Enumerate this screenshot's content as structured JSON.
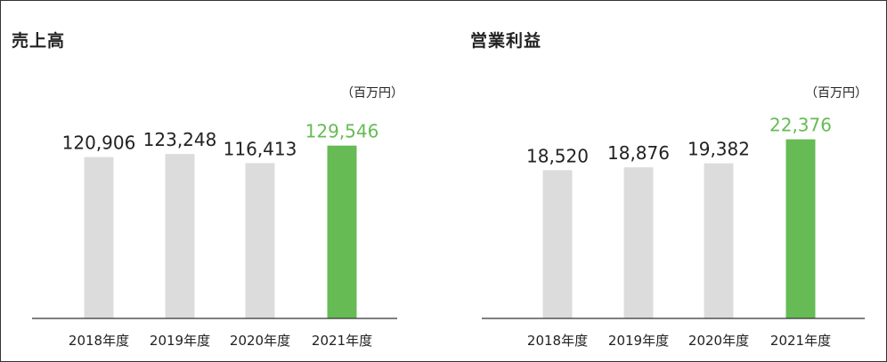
{
  "colors": {
    "bar_default": "#dcdcdc",
    "bar_highlight": "#66bb55",
    "label_default": "#222222",
    "label_highlight": "#66bb55",
    "axis": "#333333"
  },
  "chart_data": [
    {
      "type": "bar",
      "title": "売上高",
      "unit": "（百万円）",
      "categories": [
        "2018年度",
        "2019年度",
        "2020年度",
        "2021年度"
      ],
      "values": [
        120906,
        123248,
        116413,
        129546
      ],
      "value_labels": [
        "120,906",
        "123,248",
        "116,413",
        "129,546"
      ],
      "highlight_index": 3,
      "xlabel": "",
      "ylabel": "",
      "ylim": [
        0,
        180000
      ],
      "grid": false
    },
    {
      "type": "bar",
      "title": "営業利益",
      "unit": "（百万円）",
      "categories": [
        "2018年度",
        "2019年度",
        "2020年度",
        "2021年度"
      ],
      "values": [
        18520,
        18876,
        19382,
        22376
      ],
      "value_labels": [
        "18,520",
        "18,876",
        "19,382",
        "22,376"
      ],
      "highlight_index": 3,
      "xlabel": "",
      "ylabel": "",
      "ylim": [
        0,
        30000
      ],
      "grid": false
    }
  ]
}
